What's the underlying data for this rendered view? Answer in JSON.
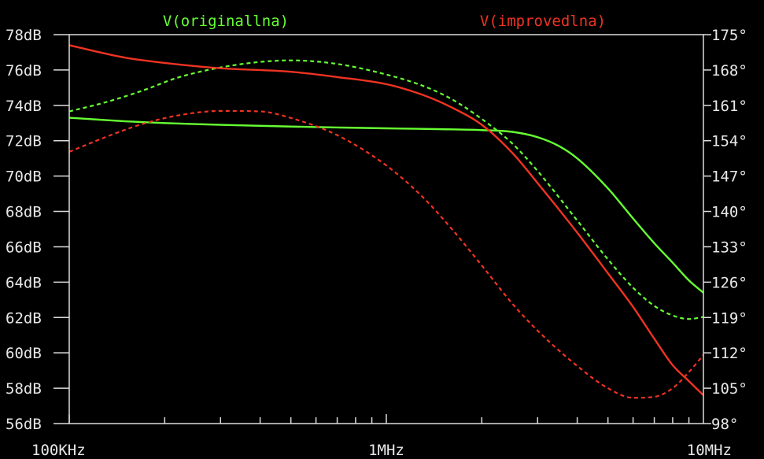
{
  "chart_data": {
    "type": "line",
    "x_scale": "log",
    "xlim": [
      100000,
      10000000
    ],
    "x_tick_labels": [
      "100KHz",
      "1MHz",
      "10MHz"
    ],
    "left_axis": {
      "ylim": [
        56,
        78
      ],
      "tick_labels": [
        "78dB",
        "76dB",
        "74dB",
        "72dB",
        "70dB",
        "68dB",
        "66dB",
        "64dB",
        "62dB",
        "60dB",
        "58dB",
        "56dB"
      ]
    },
    "right_axis": {
      "ylim": [
        98,
        175
      ],
      "tick_labels": [
        "175°",
        "168°",
        "161°",
        "154°",
        "147°",
        "140°",
        "133°",
        "126°",
        "119°",
        "112°",
        "105°",
        "98°"
      ]
    },
    "grid": false,
    "series": [
      {
        "name": "V(originallna)",
        "color": "#66ff33",
        "magnitude_dB": [
          [
            100000,
            73.3
          ],
          [
            150000,
            73.1
          ],
          [
            200000,
            73.0
          ],
          [
            300000,
            72.9
          ],
          [
            500000,
            72.8
          ],
          [
            700000,
            72.75
          ],
          [
            1000000,
            72.7
          ],
          [
            1500000,
            72.65
          ],
          [
            2000000,
            72.6
          ],
          [
            2500000,
            72.5
          ],
          [
            3000000,
            72.2
          ],
          [
            3500000,
            71.7
          ],
          [
            4000000,
            71.0
          ],
          [
            5000000,
            69.3
          ],
          [
            6000000,
            67.6
          ],
          [
            7000000,
            66.2
          ],
          [
            8000000,
            65.1
          ],
          [
            9000000,
            64.1
          ],
          [
            10000000,
            63.4
          ]
        ],
        "phase_deg": [
          [
            100000,
            159.8
          ],
          [
            130000,
            161.6
          ],
          [
            170000,
            163.9
          ],
          [
            220000,
            166.5
          ],
          [
            300000,
            168.5
          ],
          [
            400000,
            169.6
          ],
          [
            500000,
            169.9
          ],
          [
            700000,
            169.2
          ],
          [
            1000000,
            167.1
          ],
          [
            1300000,
            164.9
          ],
          [
            1600000,
            162.3
          ],
          [
            2000000,
            158.3
          ],
          [
            2500000,
            153.4
          ],
          [
            3000000,
            148.0
          ],
          [
            4000000,
            138.2
          ],
          [
            5000000,
            130.5
          ],
          [
            6000000,
            124.9
          ],
          [
            7000000,
            121.3
          ],
          [
            8000000,
            119.4
          ],
          [
            9000000,
            118.7
          ],
          [
            10000000,
            119.1
          ]
        ]
      },
      {
        "name": "V(improvedlna)",
        "color": "#ee3322",
        "magnitude_dB": [
          [
            100000,
            77.4
          ],
          [
            150000,
            76.7
          ],
          [
            200000,
            76.4
          ],
          [
            300000,
            76.1
          ],
          [
            500000,
            75.9
          ],
          [
            700000,
            75.6
          ],
          [
            1000000,
            75.2
          ],
          [
            1300000,
            74.6
          ],
          [
            1600000,
            73.9
          ],
          [
            2000000,
            72.9
          ],
          [
            2500000,
            71.3
          ],
          [
            3000000,
            69.6
          ],
          [
            4000000,
            66.8
          ],
          [
            5000000,
            64.5
          ],
          [
            6000000,
            62.6
          ],
          [
            7000000,
            60.8
          ],
          [
            8000000,
            59.3
          ],
          [
            9000000,
            58.4
          ],
          [
            10000000,
            57.6
          ]
        ],
        "phase_deg": [
          [
            100000,
            151.8
          ],
          [
            130000,
            154.7
          ],
          [
            170000,
            157.3
          ],
          [
            220000,
            159.0
          ],
          [
            300000,
            159.9
          ],
          [
            400000,
            159.8
          ],
          [
            500000,
            158.5
          ],
          [
            700000,
            155.1
          ],
          [
            1000000,
            149.1
          ],
          [
            1300000,
            142.9
          ],
          [
            1600000,
            136.7
          ],
          [
            2000000,
            129.3
          ],
          [
            2500000,
            121.7
          ],
          [
            3000000,
            116.4
          ],
          [
            4000000,
            109.4
          ],
          [
            5000000,
            105.0
          ],
          [
            6000000,
            103.1
          ],
          [
            7000000,
            103.3
          ],
          [
            8000000,
            105.0
          ],
          [
            9000000,
            108.2
          ],
          [
            10000000,
            111.6
          ]
        ]
      }
    ]
  }
}
